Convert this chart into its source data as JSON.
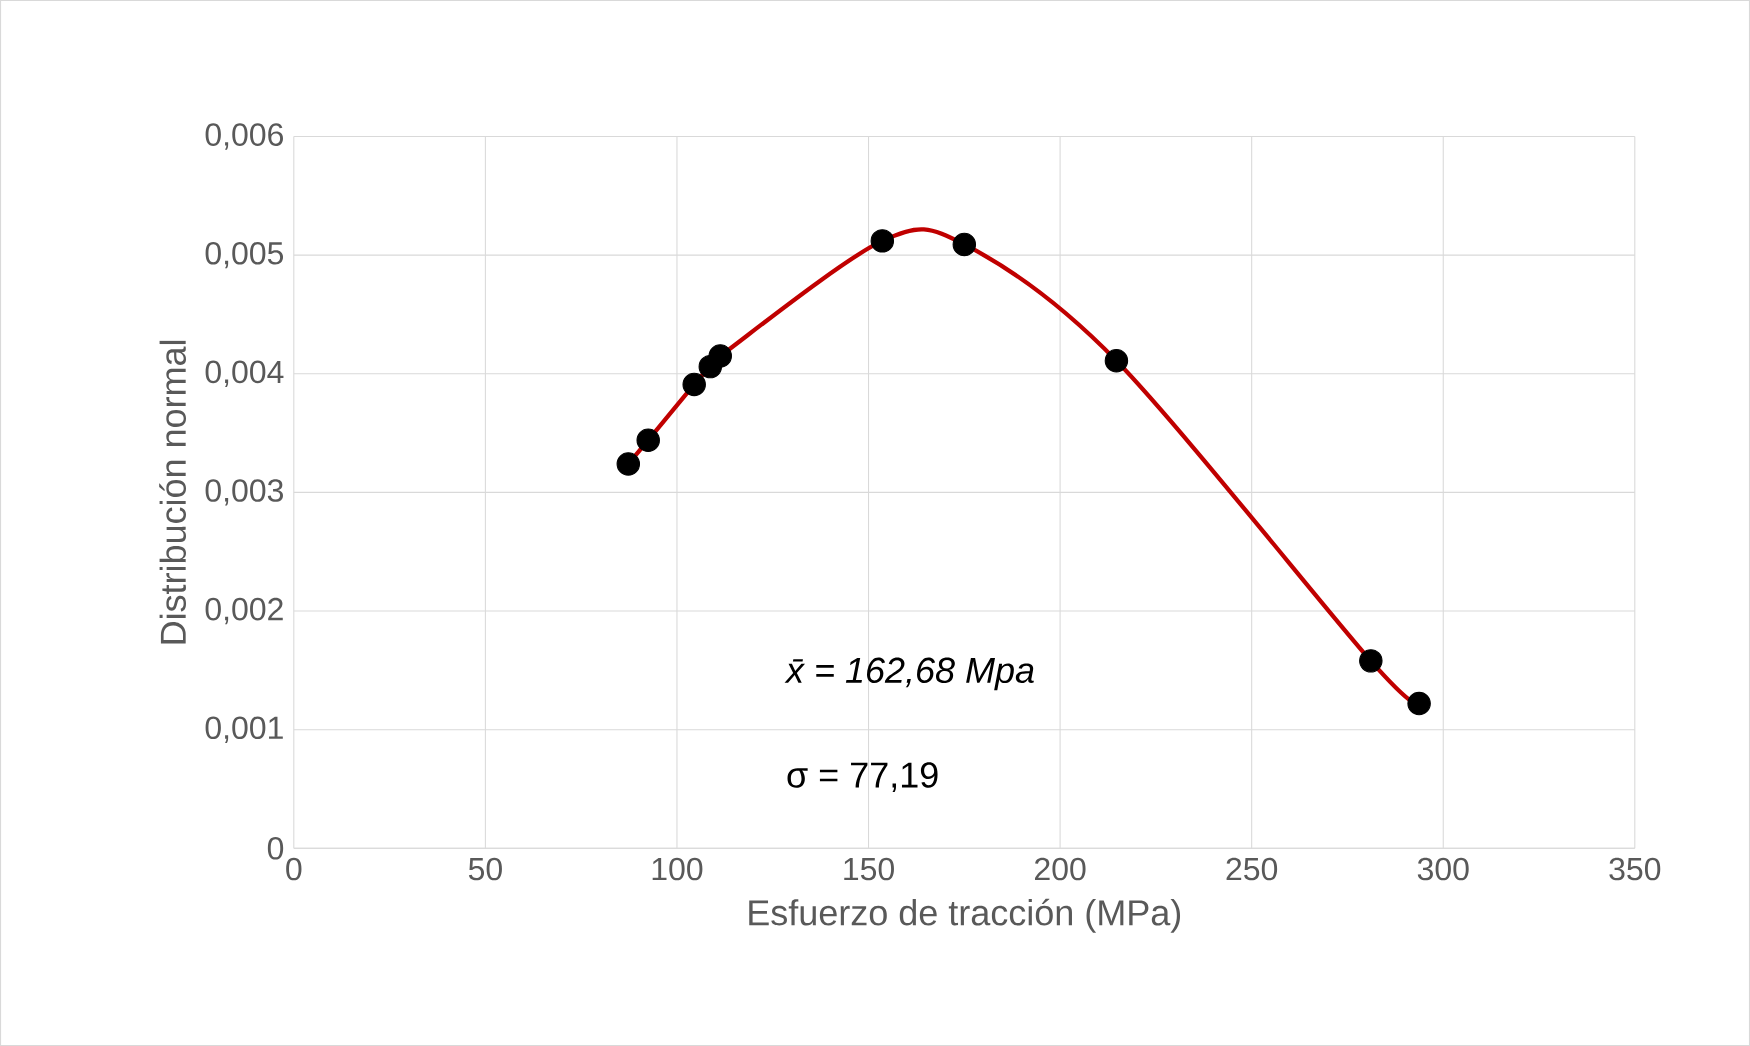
{
  "chart_data": {
    "type": "scatter",
    "xlabel": "Esfuerzo de tracción (MPa)",
    "ylabel": "Distribución normal",
    "series": [
      {
        "type": "line",
        "color": "#c00000",
        "marker": "none",
        "x": [
          87.3,
          92.5,
          104.5,
          108.7,
          111.3,
          153.6,
          175,
          214.7,
          281.1,
          293.7
        ],
        "values": [
          0.00324,
          0.00344,
          0.00391,
          0.00406,
          0.00415,
          0.00512,
          0.00509,
          0.00411,
          0.00158,
          0.00122
        ]
      },
      {
        "color": "#000000",
        "marker": "circle",
        "x": [
          87.3,
          92.5,
          104.5,
          108.7,
          111.3,
          153.6,
          175,
          214.7,
          281.1,
          293.7
        ],
        "values": [
          0.00324,
          0.00344,
          0.00391,
          0.00406,
          0.00415,
          0.00512,
          0.00509,
          0.00411,
          0.00158,
          0.00122
        ]
      }
    ],
    "xlim": [
      0,
      350
    ],
    "xticks": [
      0,
      50,
      100,
      150,
      200,
      250,
      300,
      350
    ],
    "ylim": [
      0,
      0.006
    ],
    "yticks": [
      {
        "value": 0,
        "label": "0"
      },
      {
        "value": 0.001,
        "label": "0,001"
      },
      {
        "value": 0.002,
        "label": "0,002"
      },
      {
        "value": 0.003,
        "label": "0,003"
      },
      {
        "value": 0.004,
        "label": "0,004"
      },
      {
        "value": 0.005,
        "label": "0,005"
      },
      {
        "value": 0.006,
        "label": "0,006"
      }
    ],
    "grid": true,
    "annotations": [
      "x̄ = 162,68 Mpa",
      "σ = 77,19"
    ]
  }
}
